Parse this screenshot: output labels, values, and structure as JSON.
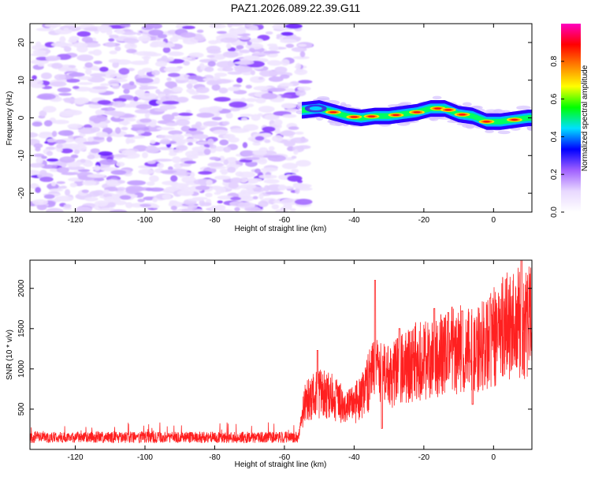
{
  "title": "PAZ1.2026.089.22.39.G11",
  "chart_data": [
    {
      "type": "heatmap",
      "xlabel": "Height of straight line (km)",
      "ylabel": "Frequency (Hz)",
      "xlim": [
        -133,
        11
      ],
      "ylim": [
        -25,
        25
      ],
      "x_ticks": [
        -120,
        -100,
        -80,
        -60,
        -40,
        -20,
        0
      ],
      "y_ticks": [
        -20,
        -10,
        0,
        10,
        20
      ],
      "noise_region_x": [
        -133,
        -54
      ],
      "signal_track": {
        "x": [
          -55,
          -50,
          -46,
          -42,
          -38,
          -34,
          -30,
          -26,
          -22,
          -18,
          -14,
          -10,
          -6,
          -2,
          2,
          6,
          10
        ],
        "freq": [
          2,
          2.5,
          1.5,
          0.5,
          0,
          0.5,
          0.5,
          1,
          1.5,
          2.5,
          2.5,
          1,
          0.5,
          -1,
          -1,
          -0.5,
          0
        ]
      },
      "colorbar": {
        "label": "Normalized spectral amplitude",
        "ticks": [
          0.0,
          0.2,
          0.4,
          0.6,
          0.8
        ],
        "range": [
          0,
          1
        ],
        "colors": [
          "#ffffff",
          "#e8d8ff",
          "#a060ff",
          "#0000ff",
          "#00e0ff",
          "#00ff00",
          "#ffff00",
          "#ff8000",
          "#ff0000",
          "#ff00c0"
        ]
      }
    },
    {
      "type": "line",
      "xlabel": "Height of straight line (km)",
      "ylabel": "SNR (10 * v/v)",
      "xlim": [
        -133,
        11
      ],
      "ylim": [
        0,
        2350
      ],
      "x_ticks": [
        -120,
        -100,
        -80,
        -60,
        -40,
        -20,
        0
      ],
      "y_ticks": [
        500,
        1000,
        1500,
        2000
      ],
      "series": [
        {
          "name": "SNR",
          "color": "#ff2020",
          "trend_x": [
            -133,
            -56,
            -54,
            -50,
            -46,
            -42,
            -38,
            -34,
            -30,
            -26,
            -22,
            -18,
            -14,
            -10,
            -6,
            -2,
            2,
            6,
            11
          ],
          "trend_y": [
            150,
            150,
            600,
            700,
            650,
            500,
            650,
            1000,
            900,
            1000,
            1100,
            1100,
            1200,
            1250,
            1200,
            1300,
            1500,
            1550,
            1600
          ],
          "spikes_x": [
            -50.5,
            -34,
            -32,
            -27,
            -17,
            -13,
            -9,
            -6,
            -1,
            8
          ],
          "spikes_y": [
            1230,
            2100,
            260,
            1500,
            1750,
            1700,
            1720,
            560,
            1880,
            2350
          ]
        }
      ]
    }
  ]
}
